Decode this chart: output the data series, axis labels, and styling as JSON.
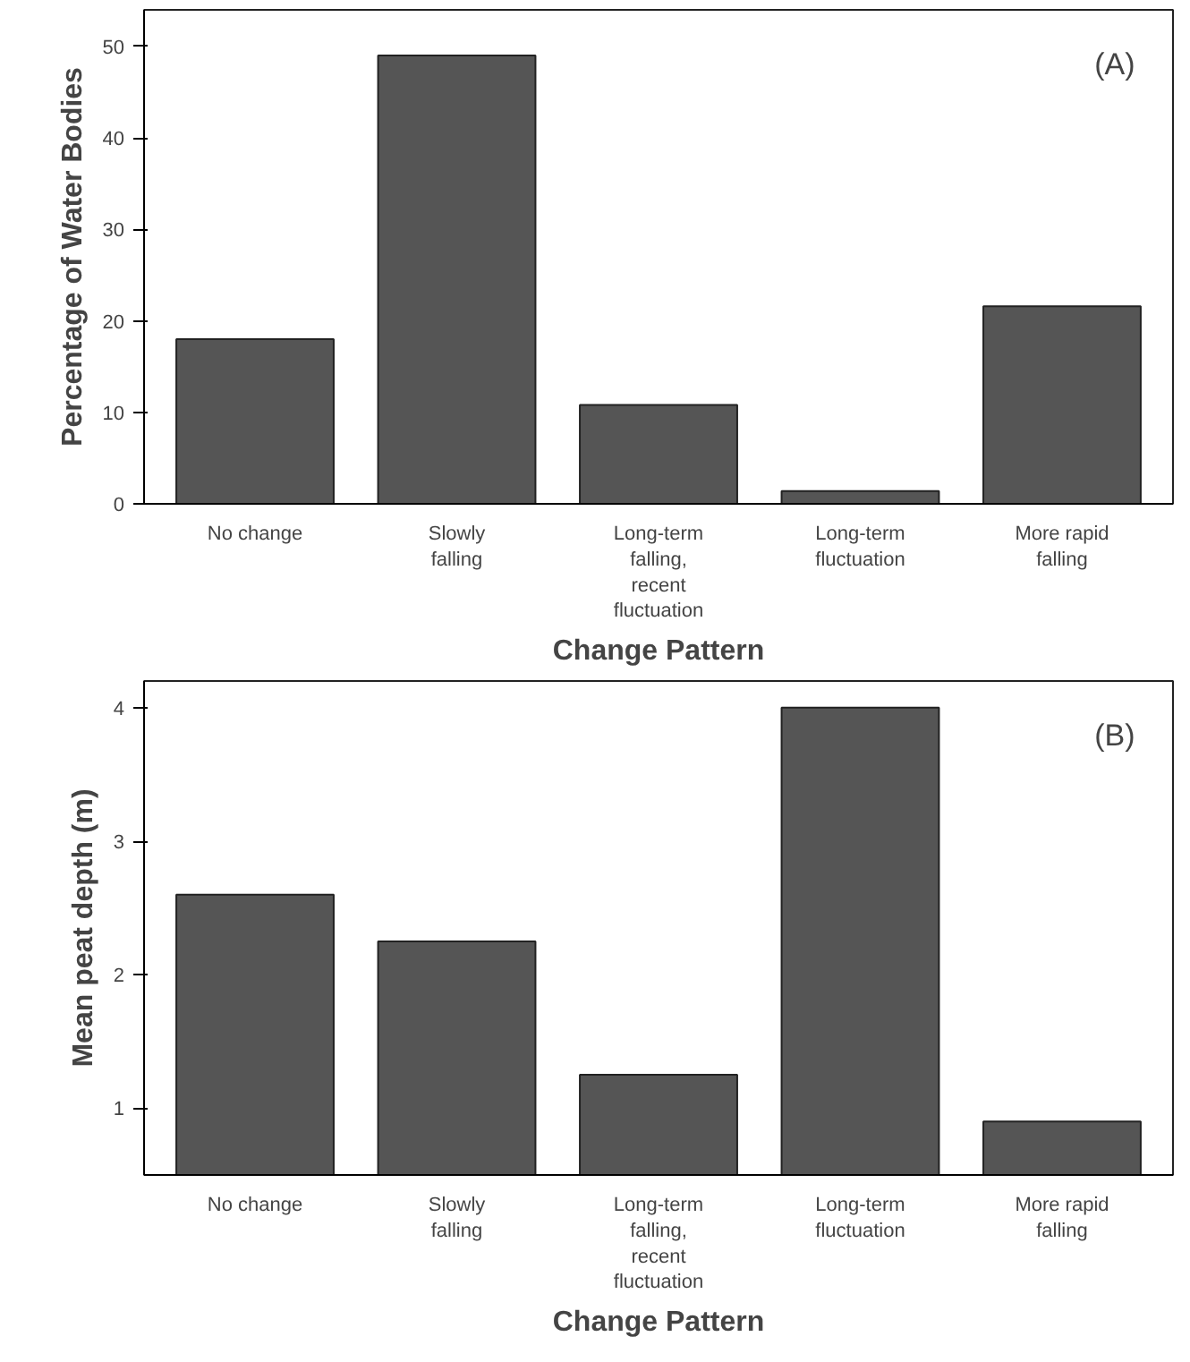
{
  "chart_data": [
    {
      "type": "bar",
      "ylabel": "Percentage of Water Bodies",
      "xlabel": "Change Pattern",
      "categories": [
        "No change",
        "Slowly falling",
        "Long-term falling, recent fluctuation",
        "Long-term fluctuation",
        "More rapid falling"
      ],
      "values": [
        18,
        49,
        10.8,
        1.4,
        21.6
      ],
      "color": "#555555",
      "ylim": [
        0,
        54
      ],
      "yticks": [
        0,
        10,
        20,
        30,
        40,
        50
      ],
      "grid": false,
      "annotations": [
        "(A)"
      ]
    },
    {
      "type": "bar",
      "ylabel": "Mean peat depth (m)",
      "xlabel": "Change Pattern",
      "categories": [
        "No change",
        "Slowly falling",
        "Long-term falling, recent fluctuation",
        "Long-term fluctuation",
        "More rapid falling"
      ],
      "values": [
        2.6,
        2.25,
        1.25,
        4.0,
        0.9
      ],
      "color": "#555555",
      "ylim": [
        0.5,
        4.2
      ],
      "yticks": [
        1,
        2,
        3,
        4
      ],
      "grid": false,
      "annotations": [
        "(B)"
      ]
    }
  ]
}
